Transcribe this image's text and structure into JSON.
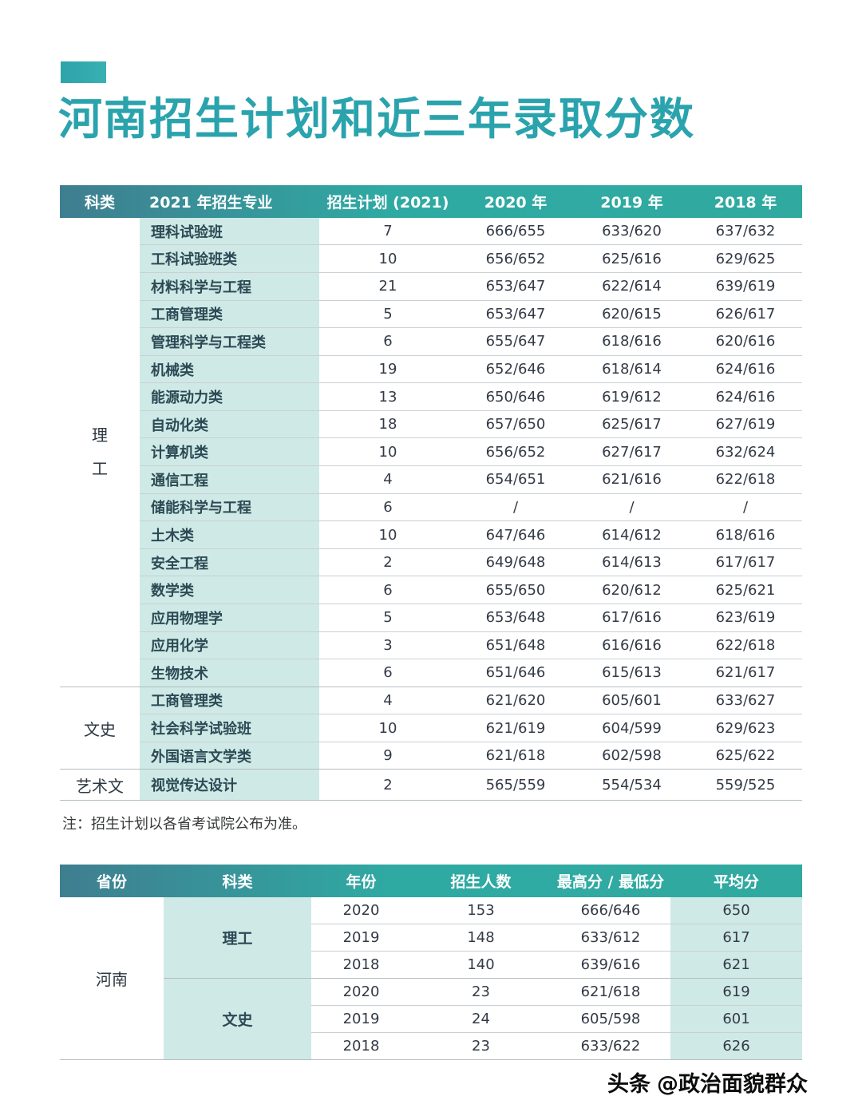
{
  "page": {
    "title": "河南招生计划和近三年录取分数",
    "note": "注：招生计划以各省考试院公布为准。",
    "watermark_logo": "头条",
    "watermark_handle": "@政治面貌群众"
  },
  "colors": {
    "accent_teal": "#2aa3ad",
    "header_gradient_left": "#3f7e90",
    "header_gradient_right": "#30a9a0",
    "mint_cell": "#cfe9e6",
    "row_line": "#c9d0d4"
  },
  "admissions_table": {
    "headers": [
      "科类",
      "2021 年招生专业",
      "招生计划 (2021)",
      "2020 年",
      "2019 年",
      "2018 年"
    ],
    "groups": [
      {
        "category": "理工",
        "vertical": true,
        "rows": [
          [
            "理科试验班",
            "7",
            "666/655",
            "633/620",
            "637/632"
          ],
          [
            "工科试验班类",
            "10",
            "656/652",
            "625/616",
            "629/625"
          ],
          [
            "材料科学与工程",
            "21",
            "653/647",
            "622/614",
            "639/619"
          ],
          [
            "工商管理类",
            "5",
            "653/647",
            "620/615",
            "626/617"
          ],
          [
            "管理科学与工程类",
            "6",
            "655/647",
            "618/616",
            "620/616"
          ],
          [
            "机械类",
            "19",
            "652/646",
            "618/614",
            "624/616"
          ],
          [
            "能源动力类",
            "13",
            "650/646",
            "619/612",
            "624/616"
          ],
          [
            "自动化类",
            "18",
            "657/650",
            "625/617",
            "627/619"
          ],
          [
            "计算机类",
            "10",
            "656/652",
            "627/617",
            "632/624"
          ],
          [
            "通信工程",
            "4",
            "654/651",
            "621/616",
            "622/618"
          ],
          [
            "储能科学与工程",
            "6",
            "/",
            "/",
            "/"
          ],
          [
            "土木类",
            "10",
            "647/646",
            "614/612",
            "618/616"
          ],
          [
            "安全工程",
            "2",
            "649/648",
            "614/613",
            "617/617"
          ],
          [
            "数学类",
            "6",
            "655/650",
            "620/612",
            "625/621"
          ],
          [
            "应用物理学",
            "5",
            "653/648",
            "617/616",
            "623/619"
          ],
          [
            "应用化学",
            "3",
            "651/648",
            "616/616",
            "622/618"
          ],
          [
            "生物技术",
            "6",
            "651/646",
            "615/613",
            "621/617"
          ]
        ]
      },
      {
        "category": "文史",
        "vertical": false,
        "rows": [
          [
            "工商管理类",
            "4",
            "621/620",
            "605/601",
            "633/627"
          ],
          [
            "社会科学试验班",
            "10",
            "621/619",
            "604/599",
            "629/623"
          ],
          [
            "外国语言文学类",
            "9",
            "621/618",
            "602/598",
            "625/622"
          ]
        ]
      },
      {
        "category": "艺术文",
        "vertical": false,
        "rows": [
          [
            "视觉传达设计",
            "2",
            "565/559",
            "554/534",
            "559/525"
          ]
        ]
      }
    ]
  },
  "summary_table": {
    "headers": [
      "省份",
      "科类",
      "年份",
      "招生人数",
      "最高分 / 最低分",
      "平均分"
    ],
    "province": "河南",
    "groups": [
      {
        "category": "理工",
        "rows": [
          [
            "2020",
            "153",
            "666/646",
            "650"
          ],
          [
            "2019",
            "148",
            "633/612",
            "617"
          ],
          [
            "2018",
            "140",
            "639/616",
            "621"
          ]
        ]
      },
      {
        "category": "文史",
        "rows": [
          [
            "2020",
            "23",
            "621/618",
            "619"
          ],
          [
            "2019",
            "24",
            "605/598",
            "601"
          ],
          [
            "2018",
            "23",
            "633/622",
            "626"
          ]
        ]
      }
    ]
  }
}
